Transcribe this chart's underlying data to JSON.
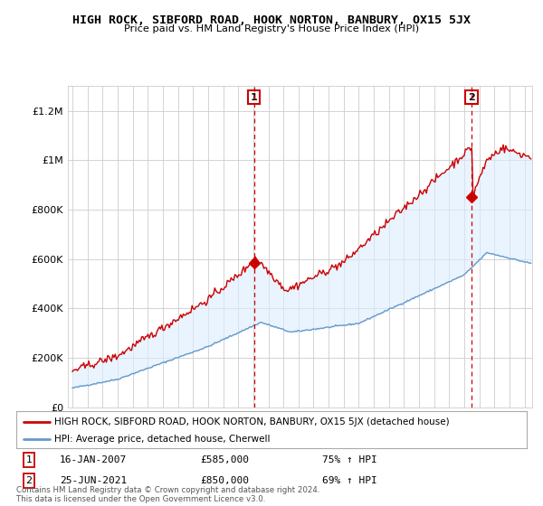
{
  "title": "HIGH ROCK, SIBFORD ROAD, HOOK NORTON, BANBURY, OX15 5JX",
  "subtitle": "Price paid vs. HM Land Registry's House Price Index (HPI)",
  "red_label": "HIGH ROCK, SIBFORD ROAD, HOOK NORTON, BANBURY, OX15 5JX (detached house)",
  "blue_label": "HPI: Average price, detached house, Cherwell",
  "footer": "Contains HM Land Registry data © Crown copyright and database right 2024.\nThis data is licensed under the Open Government Licence v3.0.",
  "annotation1": {
    "num": "1",
    "date": "16-JAN-2007",
    "price": "£585,000",
    "pct": "75% ↑ HPI"
  },
  "annotation2": {
    "num": "2",
    "date": "25-JUN-2021",
    "price": "£850,000",
    "pct": "69% ↑ HPI"
  },
  "ylim": [
    0,
    1300000
  ],
  "xlim_start": 1994.7,
  "xlim_end": 2025.5,
  "point1_x": 2007.04,
  "point1_y": 585000,
  "point2_x": 2021.48,
  "point2_y": 850000,
  "red_color": "#cc0000",
  "blue_color": "#6699cc",
  "fill_color": "#ddeeff",
  "bg_color": "#ffffff",
  "grid_color": "#cccccc",
  "annotation_line_color": "#cc0000"
}
